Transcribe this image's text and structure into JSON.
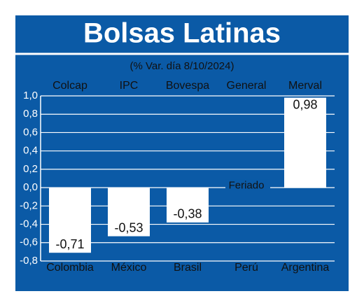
{
  "chart_data": {
    "type": "bar",
    "title": "Bolsas Latinas",
    "subtitle": "(% Var. día 8/10/2024)",
    "categories": [
      "Colombia",
      "México",
      "Brasil",
      "Perú",
      "Argentina"
    ],
    "index_names": [
      "Colcap",
      "IPC",
      "Bovespa",
      "General",
      "Merval"
    ],
    "values": [
      -0.71,
      -0.53,
      -0.38,
      null,
      0.98
    ],
    "value_labels": [
      "-0,71",
      "-0,53",
      "-0,38",
      null,
      "0,98"
    ],
    "annotation": "Feriado",
    "color": "#ffffff",
    "background": "#0b5aa6",
    "ylim": [
      -0.8,
      1.0
    ],
    "yticks": [
      {
        "value": 1.0,
        "label": "1,0"
      },
      {
        "value": 0.8,
        "label": "0,8"
      },
      {
        "value": 0.6,
        "label": "0,6"
      },
      {
        "value": 0.4,
        "label": "0,4"
      },
      {
        "value": 0.2,
        "label": "0,2"
      },
      {
        "value": 0.0,
        "label": "0,0"
      },
      {
        "value": -0.2,
        "label": "-0,2"
      },
      {
        "value": -0.4,
        "label": "-0,4"
      },
      {
        "value": -0.6,
        "label": "-0,6"
      },
      {
        "value": -0.8,
        "label": "-0,8"
      }
    ],
    "grid": true
  }
}
